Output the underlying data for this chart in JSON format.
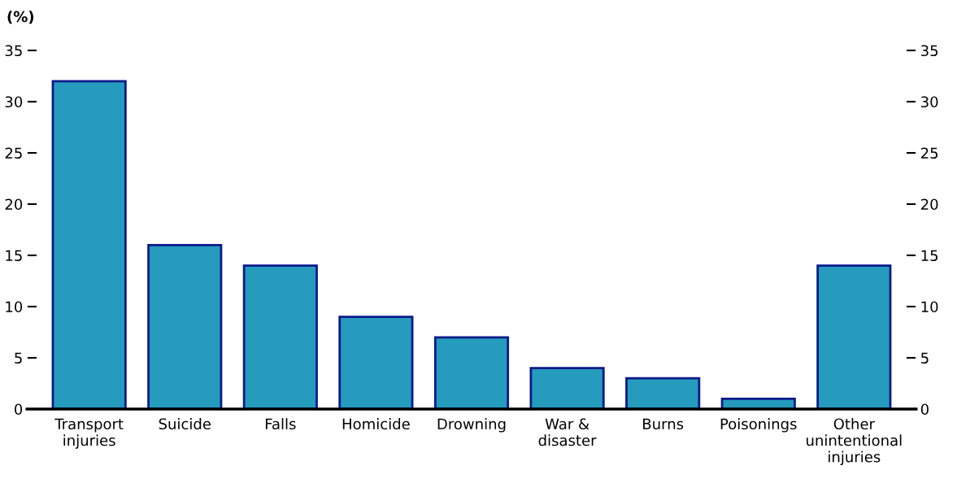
{
  "chart_data": {
    "type": "bar",
    "ylabel": "(%)",
    "categories": [
      "Transport\ninjuries",
      "Suicide",
      "Falls",
      "Homicide",
      "Drowning",
      "War &\ndisaster",
      "Burns",
      "Poisonings",
      "Other\nunintentional\ninjuries"
    ],
    "values": [
      32,
      16,
      14,
      9,
      7,
      4,
      3,
      1,
      14
    ],
    "color": "#259bbd",
    "ylim": [
      0,
      35
    ],
    "yticks": [
      0,
      5,
      10,
      15,
      20,
      25,
      30,
      35
    ],
    "y2lim": [
      0,
      35
    ],
    "y2ticks": [
      0,
      5,
      10,
      15,
      20,
      25,
      30,
      35
    ],
    "grid": false,
    "legend": false
  }
}
